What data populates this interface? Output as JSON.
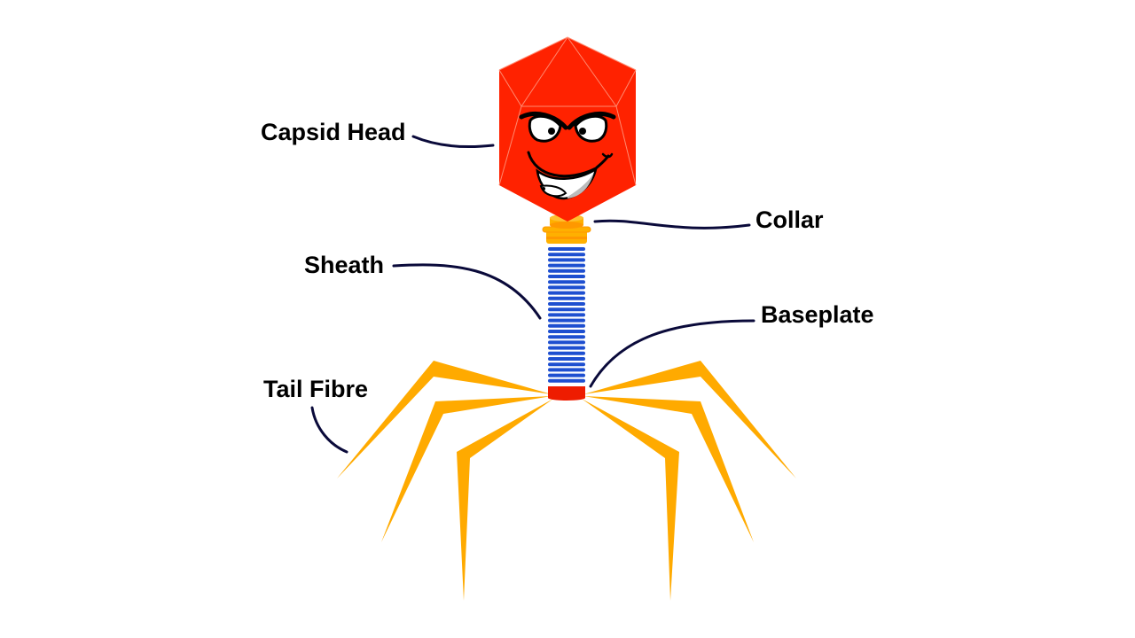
{
  "labels": {
    "capsid_head": "Capsid Head",
    "collar": "Collar",
    "sheath": "Sheath",
    "baseplate": "Baseplate",
    "tail_fibre": "Tail Fibre"
  },
  "colors": {
    "capsid": "#ff2200",
    "capsid_edges": "#ff8a70",
    "collar": "#ffb000",
    "collar_shade": "#ff9800",
    "sheath_ring": "#1e4fd0",
    "baseplate": "#ee1c00",
    "tail_fibre": "#ffaa00",
    "leader_line": "#0a0a3a",
    "label_text": "#000000"
  },
  "face": {
    "expression": "grinning-evil-icon"
  }
}
